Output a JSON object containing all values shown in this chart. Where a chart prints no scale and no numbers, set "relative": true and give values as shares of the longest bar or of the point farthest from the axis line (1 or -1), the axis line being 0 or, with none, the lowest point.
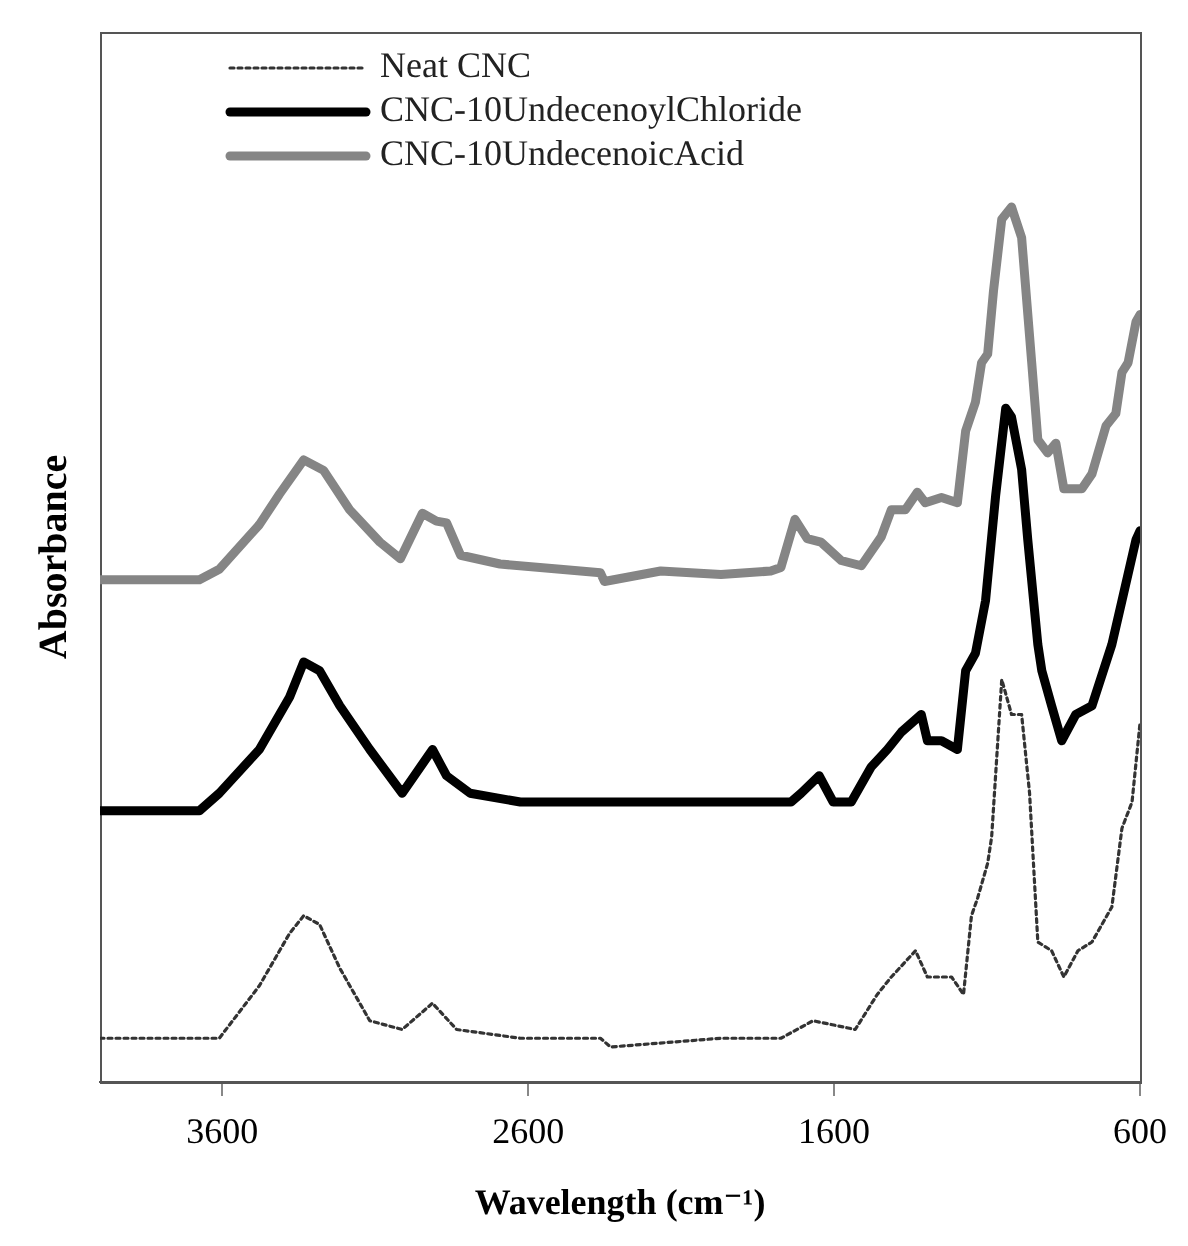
{
  "chart_data": {
    "type": "line",
    "xlabel": "Wavelength (cm⁻¹)",
    "ylabel": "Absorbance",
    "relative": true,
    "xlim": [
      4000,
      600
    ],
    "xticks": [
      3600,
      2600,
      1600,
      600
    ],
    "legend": "top left",
    "marker": "none",
    "series": [
      {
        "name": "Neat CNC",
        "color": "#333333",
        "line_style": "dotted",
        "x": [
          4000,
          3675,
          3610,
          3479,
          3380,
          3334,
          3282,
          3216,
          3118,
          3012,
          2913,
          2834,
          2626,
          2364,
          2331,
          1970,
          1774,
          1669,
          1531,
          1459,
          1413,
          1334,
          1295,
          1216,
          1177,
          1151,
          1131,
          1098,
          1085,
          1052,
          1020,
          987,
          961,
          934,
          889,
          849,
          803,
          757,
          692,
          659,
          626,
          600
        ],
        "values": [
          0.05,
          0.05,
          0.05,
          0.11,
          0.17,
          0.19,
          0.18,
          0.13,
          0.07,
          0.06,
          0.09,
          0.06,
          0.05,
          0.05,
          0.04,
          0.05,
          0.05,
          0.07,
          0.06,
          0.1,
          0.12,
          0.15,
          0.12,
          0.12,
          0.1,
          0.19,
          0.21,
          0.25,
          0.28,
          0.46,
          0.42,
          0.42,
          0.33,
          0.16,
          0.15,
          0.12,
          0.15,
          0.16,
          0.2,
          0.29,
          0.32,
          0.41
        ]
      },
      {
        "name": "CNC-10UndecenoylChloride",
        "color": "#000000",
        "line_style": "solid",
        "x": [
          4000,
          3675,
          3610,
          3479,
          3380,
          3334,
          3282,
          3216,
          3118,
          3012,
          2913,
          2867,
          2790,
          2626,
          2364,
          2167,
          1970,
          1741,
          1708,
          1649,
          1603,
          1544,
          1479,
          1426,
          1380,
          1315,
          1295,
          1249,
          1197,
          1170,
          1138,
          1105,
          1072,
          1039,
          1020,
          987,
          967,
          934,
          921,
          889,
          856,
          810,
          757,
          692,
          659,
          613,
          600
        ],
        "values": [
          0.31,
          0.31,
          0.33,
          0.38,
          0.44,
          0.48,
          0.47,
          0.43,
          0.38,
          0.33,
          0.38,
          0.35,
          0.33,
          0.32,
          0.32,
          0.32,
          0.32,
          0.32,
          0.33,
          0.35,
          0.32,
          0.32,
          0.36,
          0.38,
          0.4,
          0.42,
          0.39,
          0.39,
          0.38,
          0.47,
          0.49,
          0.55,
          0.67,
          0.77,
          0.76,
          0.7,
          0.62,
          0.5,
          0.47,
          0.43,
          0.39,
          0.42,
          0.43,
          0.5,
          0.55,
          0.62,
          0.63
        ]
      },
      {
        "name": "CNC-10UndecenoicAcid",
        "color": "#858585",
        "line_style": "solid",
        "x": [
          4000,
          3675,
          3610,
          3479,
          3413,
          3334,
          3269,
          3184,
          3085,
          3018,
          2946,
          2900,
          2867,
          2821,
          2692,
          2495,
          2364,
          2351,
          2167,
          1970,
          1807,
          1774,
          1728,
          1688,
          1643,
          1577,
          1511,
          1446,
          1413,
          1367,
          1328,
          1302,
          1249,
          1197,
          1170,
          1138,
          1118,
          1098,
          1079,
          1052,
          1020,
          987,
          954,
          934,
          902,
          875,
          849,
          790,
          757,
          711,
          679,
          659,
          639,
          613,
          600
        ],
        "values": [
          0.574,
          0.574,
          0.586,
          0.637,
          0.672,
          0.711,
          0.699,
          0.654,
          0.617,
          0.598,
          0.65,
          0.641,
          0.639,
          0.602,
          0.592,
          0.586,
          0.582,
          0.572,
          0.584,
          0.58,
          0.584,
          0.588,
          0.643,
          0.621,
          0.617,
          0.596,
          0.59,
          0.623,
          0.654,
          0.654,
          0.674,
          0.662,
          0.668,
          0.662,
          0.744,
          0.777,
          0.822,
          0.832,
          0.904,
          0.986,
          1,
          0.965,
          0.822,
          0.734,
          0.719,
          0.73,
          0.678,
          0.678,
          0.695,
          0.75,
          0.764,
          0.811,
          0.822,
          0.869,
          0.877
        ]
      }
    ]
  }
}
